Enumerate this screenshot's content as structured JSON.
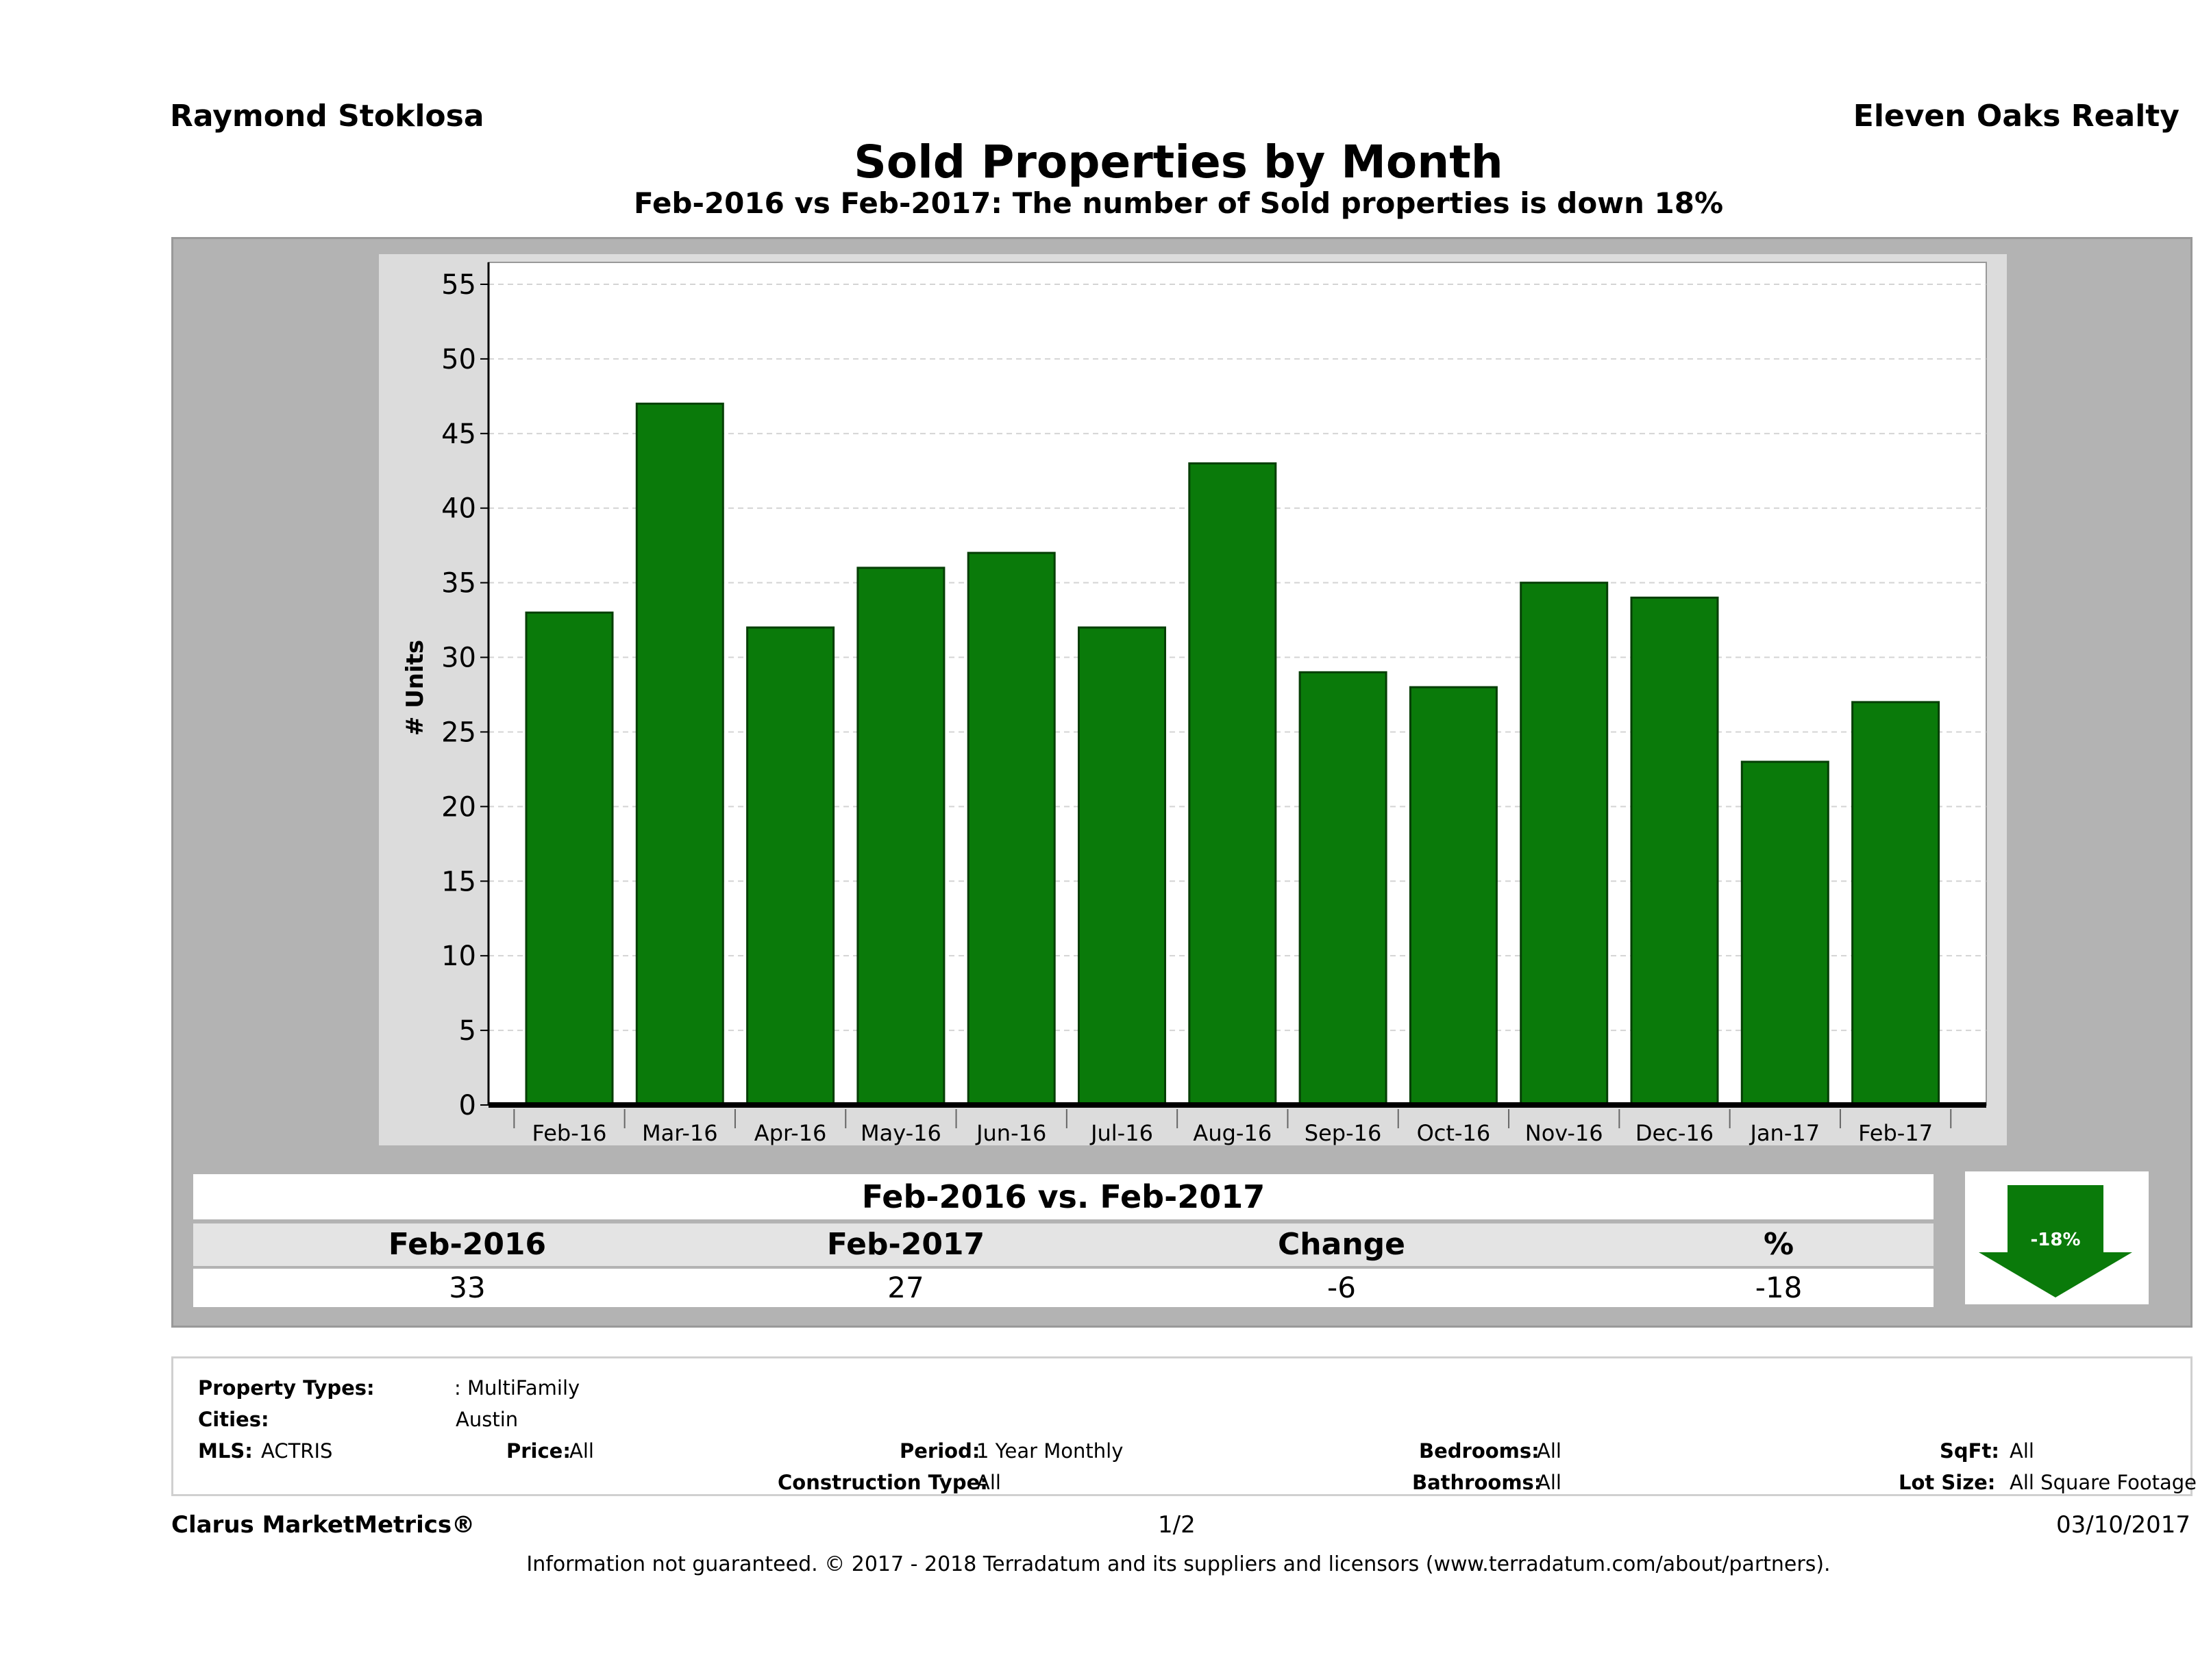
{
  "header": {
    "agent": "Raymond Stoklosa",
    "company": "Eleven Oaks Realty",
    "title": "Sold Properties by Month",
    "subtitle": "Feb-2016 vs Feb-2017: The number of Sold  properties is down 18%"
  },
  "chart_data": {
    "type": "bar",
    "categories": [
      "Feb-16",
      "Mar-16",
      "Apr-16",
      "May-16",
      "Jun-16",
      "Jul-16",
      "Aug-16",
      "Sep-16",
      "Oct-16",
      "Nov-16",
      "Dec-16",
      "Jan-17",
      "Feb-17"
    ],
    "values": [
      33,
      47,
      32,
      36,
      37,
      32,
      43,
      29,
      28,
      35,
      34,
      23,
      27
    ],
    "ylabel": "# Units",
    "ylim": [
      0,
      55
    ],
    "yticks": [
      "0",
      "5",
      "10",
      "15",
      "20",
      "25",
      "30",
      "35",
      "40",
      "45",
      "50",
      "55"
    ],
    "grid": true,
    "bar_color": "#0a7a0a"
  },
  "summary": {
    "heading": "Feb-2016 vs. Feb-2017",
    "columns": [
      "Feb-2016",
      "Feb-2017",
      "Change",
      "%"
    ],
    "values": [
      "33",
      "27",
      "-6",
      "-18"
    ],
    "badge": "-18%",
    "badge_icon": "down-arrow-icon"
  },
  "details": {
    "property_types_label": "Property Types:",
    "property_types_value": ": MultiFamily",
    "cities_label": "Cities:",
    "cities_value": "Austin",
    "mls_label": "MLS:",
    "mls_value": "ACTRIS",
    "price_label": "Price:",
    "price_value": "All",
    "period_label": "Period:",
    "period_value": "1 Year Monthly",
    "construction_label": "Construction Type:",
    "construction_value": "All",
    "bedrooms_label": "Bedrooms:",
    "bedrooms_value": "All",
    "bathrooms_label": "Bathrooms:",
    "bathrooms_value": "All",
    "sqft_label": "SqFt:",
    "sqft_value": "All",
    "lot_label": "Lot Size:",
    "lot_value": "All Square Footage"
  },
  "footer": {
    "brand": "Clarus MarketMetrics®",
    "page": "1/2",
    "date": "03/10/2017",
    "disclaimer": "Information not guaranteed. © 2017 - 2018 Terradatum and its suppliers and licensors (www.terradatum.com/about/partners)."
  }
}
